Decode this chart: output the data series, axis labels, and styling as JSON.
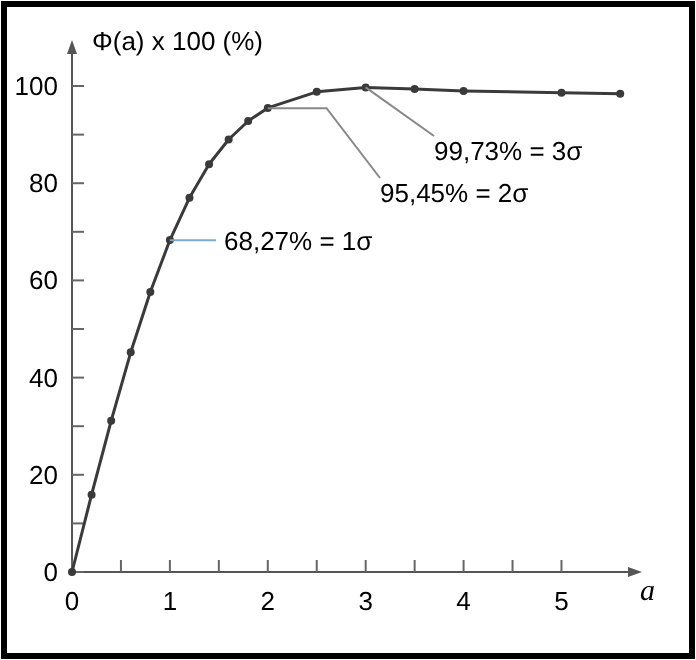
{
  "chart_data": {
    "type": "line",
    "ylabel": "Φ(a) x 100 (%)",
    "xlabel": "a",
    "x": [
      0,
      0.2,
      0.4,
      0.6,
      0.8,
      1,
      1.2,
      1.4,
      1.6,
      1.8,
      2,
      2.5,
      3,
      3.5,
      4,
      5,
      5.6
    ],
    "series": [
      {
        "color": "#3a3a3a",
        "values": [
          0,
          15.9,
          31.1,
          45.2,
          57.6,
          68.3,
          77,
          83.9,
          89,
          92.8,
          95.5,
          98.8,
          99.7,
          99.4,
          99,
          98.6,
          98.4
        ]
      }
    ],
    "xlim": [
      0,
      5.7
    ],
    "ylim": [
      0,
      107
    ],
    "xticks": [
      0,
      {
        "value": 0.5,
        "label": null
      },
      1,
      {
        "value": 1.5,
        "label": null
      },
      2,
      {
        "value": 2.5,
        "label": null
      },
      3,
      {
        "value": 3.5,
        "label": null
      },
      4,
      {
        "value": 4.5,
        "label": null
      },
      5
    ],
    "yticks": [
      0,
      {
        "value": 10,
        "label": null
      },
      20,
      {
        "value": 30,
        "label": null
      },
      40,
      {
        "value": 50,
        "label": null
      },
      60,
      {
        "value": 70,
        "label": null
      },
      80,
      {
        "value": 90,
        "label": null
      },
      100
    ],
    "annotations": [
      {
        "text": "68,27% = 1σ",
        "x": 1,
        "y": 68.27
      },
      {
        "text": "95,45% = 2σ",
        "x": 2,
        "y": 95.45
      },
      {
        "text": "99,73% = 3σ",
        "x": 3,
        "y": 99.73
      }
    ],
    "marker": "circle",
    "line_style": "solid",
    "grid": false
  }
}
